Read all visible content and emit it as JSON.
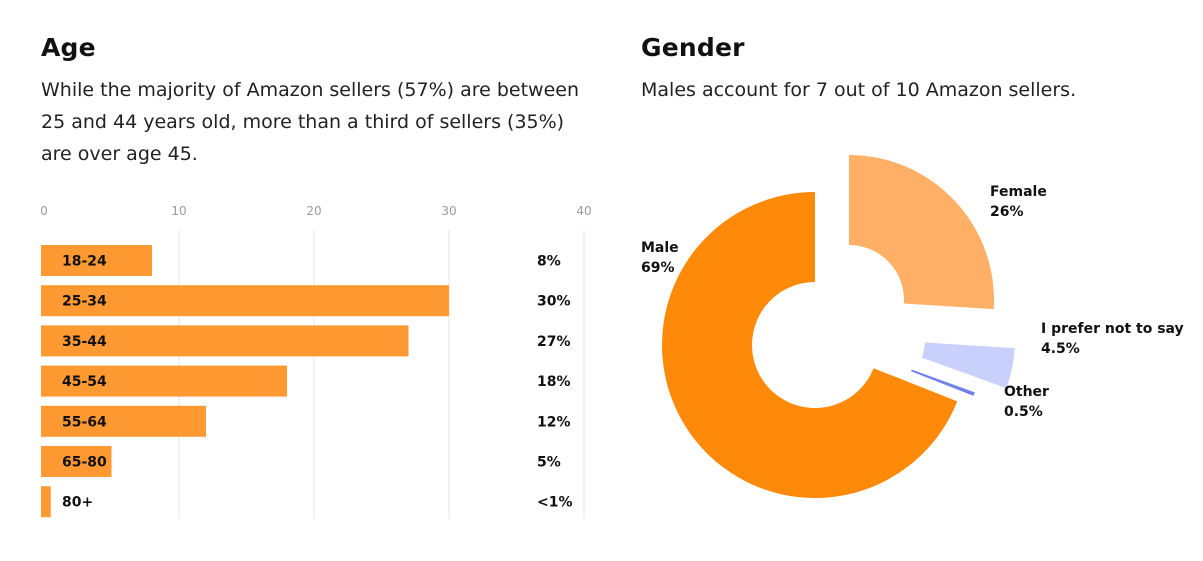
{
  "age": {
    "title": "Age",
    "description": "While the majority of Amazon sellers (57%) are between 25 and 44 years old, more than a third of sellers (35%) are over age 45."
  },
  "gender": {
    "title": "Gender",
    "description": "Males account for 7 out of 10 Amazon sellers."
  },
  "chart_data": [
    {
      "type": "bar",
      "orientation": "horizontal",
      "categories": [
        "18-24",
        "25-34",
        "35-44",
        "45-54",
        "55-64",
        "65-80",
        "80+"
      ],
      "values": [
        8,
        30,
        27,
        18,
        12,
        5,
        0.5
      ],
      "value_labels": [
        "8%",
        "30%",
        "27%",
        "18%",
        "12%",
        "5%",
        "<1%"
      ],
      "xlim": [
        0,
        40
      ],
      "xticks": [
        0,
        10,
        20,
        30,
        40
      ],
      "grid": true,
      "color": "#ff9a33"
    },
    {
      "type": "pie",
      "style": "exploded donut",
      "slices": [
        {
          "label": "Female",
          "value": 26,
          "value_label": "26%",
          "color": "#ffb066"
        },
        {
          "label": "I prefer not to say",
          "value": 4.5,
          "value_label": "4.5%",
          "color": "#c8d0fb"
        },
        {
          "label": "Other",
          "value": 0.5,
          "value_label": "0.5%",
          "color": "#6f80e8"
        },
        {
          "label": "Male",
          "value": 69,
          "value_label": "69%",
          "color": "#ff8a0a"
        }
      ]
    }
  ]
}
